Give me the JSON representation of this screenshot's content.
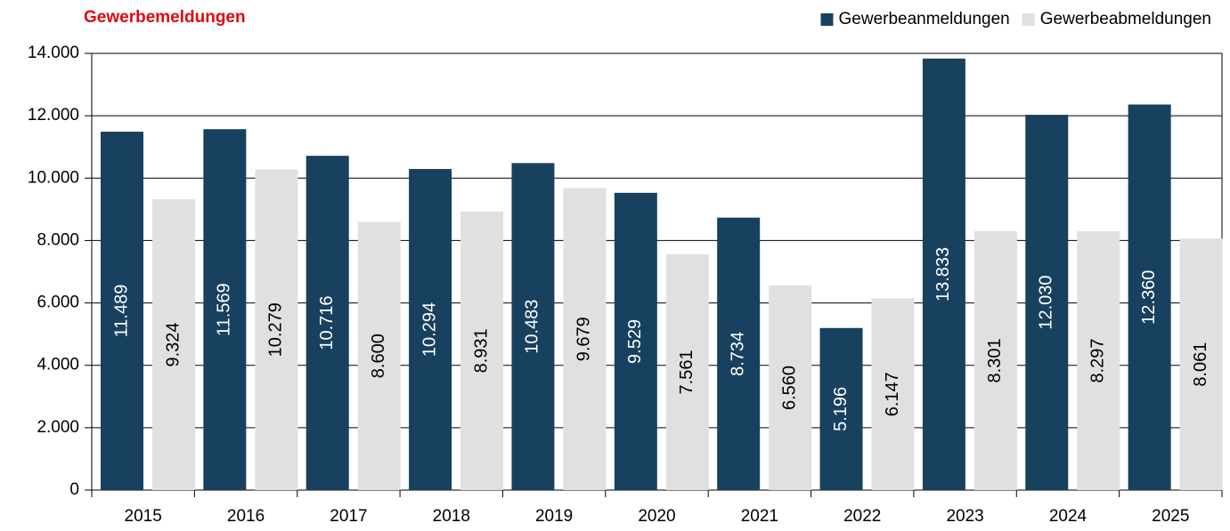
{
  "chart_data": {
    "type": "bar",
    "title": "Gewerbemeldungen",
    "categories": [
      "2015",
      "2016",
      "2017",
      "2018",
      "2019",
      "2020",
      "2021",
      "2022",
      "2023",
      "2024",
      "2025"
    ],
    "series": [
      {
        "name": "Gewerbeanmeldungen",
        "color": "#17415f",
        "values": [
          11489,
          11569,
          10716,
          10294,
          10483,
          9529,
          8734,
          5196,
          13833,
          12030,
          12360
        ],
        "value_labels": [
          "11.489",
          "11.569",
          "10.716",
          "10.294",
          "10.483",
          "9.529",
          "8.734",
          "5.196",
          "13.833",
          "12.030",
          "12.360"
        ]
      },
      {
        "name": "Gewerbeabmeldungen",
        "color": "#e0e0e0",
        "values": [
          9324,
          10279,
          8600,
          8931,
          9679,
          7561,
          6560,
          6147,
          8301,
          8297,
          8061
        ],
        "value_labels": [
          "9.324",
          "10.279",
          "8.600",
          "8.931",
          "9.679",
          "7.561",
          "6.560",
          "6.147",
          "8.301",
          "8.297",
          "8.061"
        ]
      }
    ],
    "ylim": [
      0,
      14000
    ],
    "yticks": [
      0,
      {
        "value": 2000,
        "label": "2.000"
      },
      {
        "value": 4000,
        "label": "4.000"
      },
      {
        "value": 6000,
        "label": "6.000"
      },
      {
        "value": 8000,
        "label": "8.000"
      },
      {
        "value": 10000,
        "label": "10.000"
      },
      {
        "value": 12000,
        "label": "12.000"
      },
      {
        "value": 14000,
        "label": "14.000"
      }
    ],
    "grid": true,
    "legend": "top-right"
  }
}
